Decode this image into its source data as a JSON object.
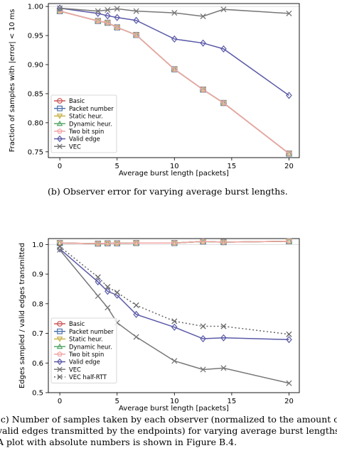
{
  "captions": {
    "top": "(b)  Observer error for varying average burst lengths.",
    "bottom": [
      "(c)  Number of samples taken by each observer (normalized to the amount o",
      "valid edges transmitted by the endpoints) for varying average burst lengths",
      "A plot with absolute numbers is shown in Figure B.4."
    ]
  },
  "chart_data": [
    {
      "type": "line",
      "title": "",
      "xlabel": "Average burst length [packets]",
      "ylabel": "Fraction of samples with |error| < 10 ms",
      "xlim": [
        -1,
        20.9
      ],
      "ylim": [
        0.74,
        1.005
      ],
      "xticks": [
        0,
        5,
        10,
        15,
        20
      ],
      "yticks": [
        0.75,
        0.8,
        0.85,
        0.9,
        0.95,
        1.0
      ],
      "ytick_labels": [
        "0.75",
        "0.80",
        "0.85",
        "0.90",
        "0.95",
        "1.00"
      ],
      "grid": false,
      "reference_line": 1.0,
      "legend_position": "lower-left",
      "x": [
        0,
        3.33,
        4.17,
        5,
        6.67,
        10,
        12.5,
        14.29,
        20
      ],
      "series": [
        {
          "name": "Basic",
          "color": "#cc5555",
          "marker": "circle",
          "values": [
            0.992,
            0.975,
            0.972,
            0.964,
            0.951,
            0.892,
            0.857,
            0.834,
            0.747
          ]
        },
        {
          "name": "Packet number",
          "color": "#4c72b0",
          "marker": "square",
          "values": [
            0.992,
            0.975,
            0.972,
            0.964,
            0.951,
            0.892,
            0.857,
            0.834,
            0.747
          ]
        },
        {
          "name": "Static heur.",
          "color": "#c9b24a",
          "marker": "tri-down",
          "values": [
            0.992,
            0.975,
            0.972,
            0.964,
            0.951,
            0.892,
            0.857,
            0.834,
            0.747
          ]
        },
        {
          "name": "Dynamic heur.",
          "color": "#55a868",
          "marker": "tri-up",
          "values": [
            0.992,
            0.975,
            0.972,
            0.964,
            0.951,
            0.892,
            0.857,
            0.834,
            0.747
          ]
        },
        {
          "name": "Two bit spin",
          "color": "#f4a6a6",
          "marker": "pentagon",
          "values": [
            0.992,
            0.975,
            0.972,
            0.964,
            0.951,
            0.892,
            0.857,
            0.834,
            0.747
          ]
        },
        {
          "name": "Valid edge",
          "color": "#5a5aa8",
          "marker": "diamond",
          "values": [
            0.997,
            0.988,
            0.984,
            0.981,
            0.976,
            0.944,
            0.937,
            0.927,
            0.847
          ]
        },
        {
          "name": "VEC",
          "color": "#777777",
          "marker": "x",
          "values": [
            0.997,
            0.992,
            0.994,
            0.996,
            0.992,
            0.989,
            0.983,
            0.995,
            0.988
          ]
        }
      ]
    },
    {
      "type": "line",
      "title": "",
      "xlabel": "Average burst length [packets]",
      "ylabel": "Edges sampled / valid edges transmitted",
      "xlim": [
        -1,
        20.9
      ],
      "ylim": [
        0.5,
        1.02
      ],
      "xticks": [
        0,
        5,
        10,
        15,
        20
      ],
      "yticks": [
        0.5,
        0.6,
        0.7,
        0.8,
        0.9,
        1.0
      ],
      "ytick_labels": [
        "0.5",
        "0.6",
        "0.7",
        "0.8",
        "0.9",
        "1.0"
      ],
      "grid": false,
      "reference_line": 1.0,
      "legend_position": "lower-left",
      "x": [
        0,
        3.33,
        4.17,
        5,
        6.67,
        10,
        12.5,
        14.29,
        20
      ],
      "series": [
        {
          "name": "Basic",
          "color": "#cc5555",
          "marker": "circle",
          "values": [
            1.005,
            1.003,
            1.004,
            1.004,
            1.005,
            1.005,
            1.01,
            1.008,
            1.011
          ]
        },
        {
          "name": "Packet number",
          "color": "#4c72b0",
          "marker": "square",
          "values": [
            1.005,
            1.003,
            1.004,
            1.004,
            1.005,
            1.005,
            1.01,
            1.008,
            1.011
          ]
        },
        {
          "name": "Static heur.",
          "color": "#c9b24a",
          "marker": "tri-down",
          "values": [
            1.005,
            1.003,
            1.004,
            1.004,
            1.005,
            1.005,
            1.01,
            1.008,
            1.011
          ]
        },
        {
          "name": "Dynamic heur.",
          "color": "#55a868",
          "marker": "tri-up",
          "values": [
            1.005,
            1.003,
            1.004,
            1.004,
            1.005,
            1.005,
            1.01,
            1.008,
            1.011
          ]
        },
        {
          "name": "Two bit spin",
          "color": "#f4a6a6",
          "marker": "pentagon",
          "values": [
            1.005,
            1.003,
            1.004,
            1.004,
            1.005,
            1.005,
            1.01,
            1.008,
            1.011
          ]
        },
        {
          "name": "Valid edge",
          "color": "#5a5aa8",
          "marker": "diamond",
          "values": [
            0.985,
            0.874,
            0.842,
            0.829,
            0.764,
            0.721,
            0.682,
            0.685,
            0.679
          ]
        },
        {
          "name": "VEC",
          "color": "#777777",
          "marker": "x",
          "values": [
            0.982,
            0.826,
            0.787,
            0.736,
            0.688,
            0.607,
            0.578,
            0.583,
            0.532
          ]
        },
        {
          "name": "VEC half-RTT",
          "color": "#666666",
          "marker": "x",
          "dashed": true,
          "values": [
            0.993,
            0.89,
            0.857,
            0.838,
            0.795,
            0.741,
            0.724,
            0.724,
            0.697
          ]
        }
      ]
    }
  ]
}
